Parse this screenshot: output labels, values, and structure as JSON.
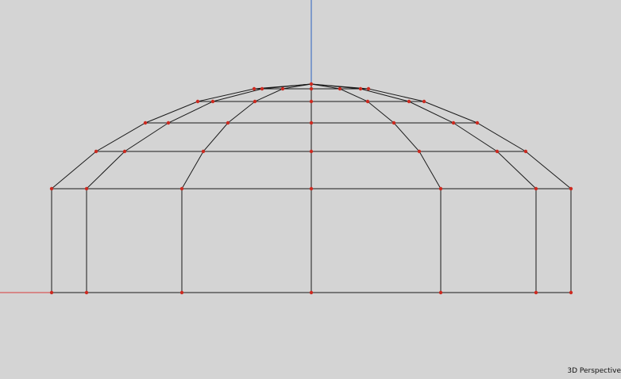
{
  "viewport": {
    "mode_label": "3D Perspective",
    "background_color": "#d4d4d4",
    "edge_color": "#1a1a1a",
    "vertex_color": "#cc2a20",
    "axis_x_color": "#d93a3a",
    "axis_y_color": "#2a5fbf"
  },
  "model": {
    "type": "dome-wireframe"
  }
}
